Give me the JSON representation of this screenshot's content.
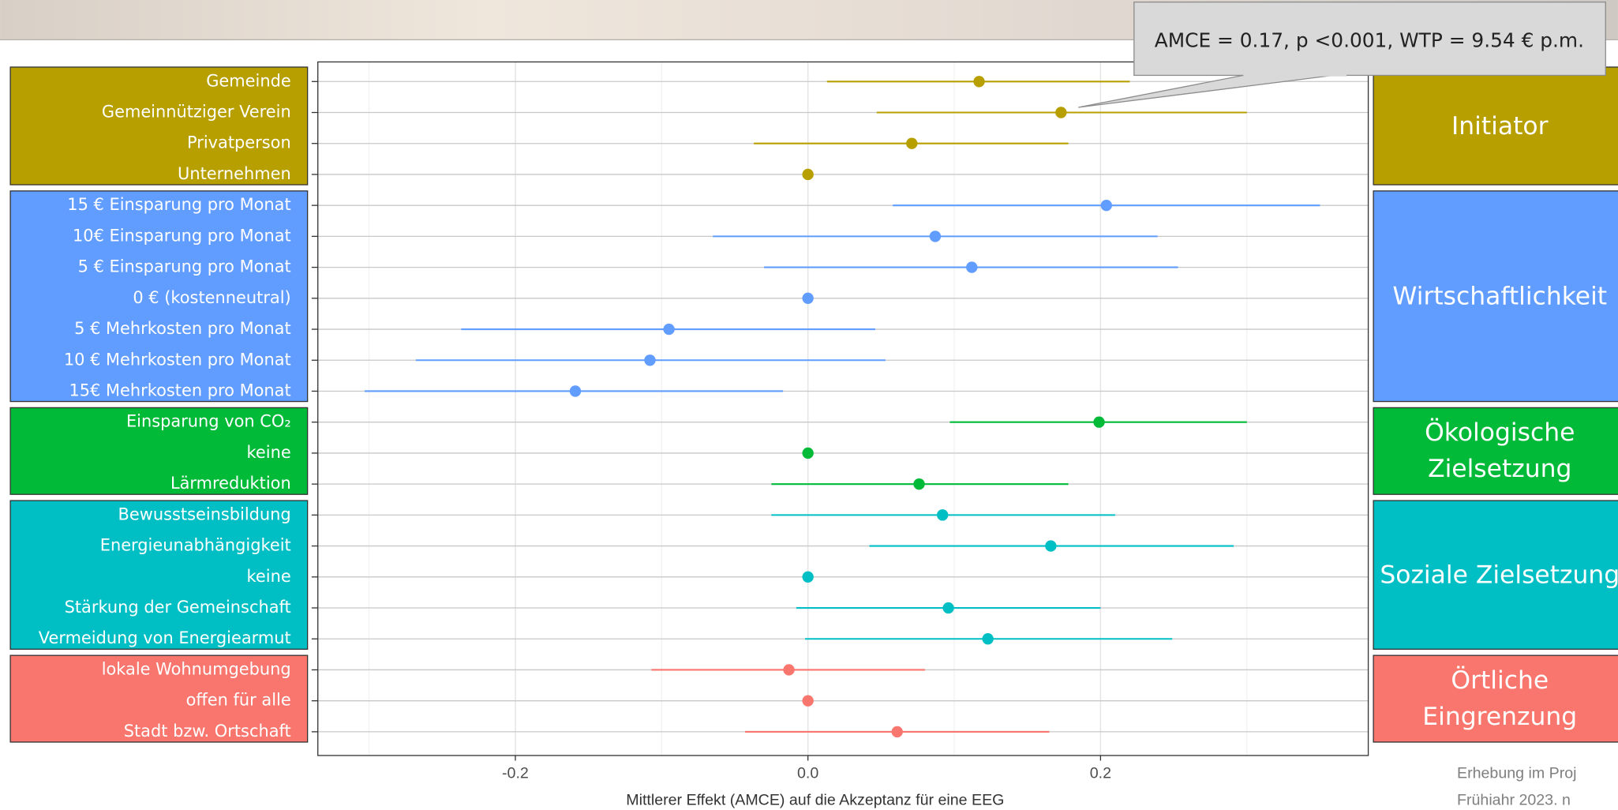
{
  "chart_data": {
    "type": "forest",
    "x_label": "Mittlerer Effekt (AMCE) auf die Akzeptanz für eine EEG",
    "annotation": "AMCE = 0.17, p <0.001, WTP = 9.54 € p.m.",
    "footnote": [
      "Erhebung im Proj",
      "Frühiahr 2023. n"
    ],
    "xlim": [
      -0.335,
      0.383
    ],
    "xticks": [
      -0.2,
      {
        "value": 0,
        "label": "0.0"
      },
      0.2
    ],
    "x_minor_gridlines": [
      -0.3,
      -0.1,
      0.1,
      0.3
    ],
    "grid": true,
    "groups": [
      {
        "name": "Initiator",
        "color": "#b79f00",
        "categories": [
          "Gemeinde",
          "Gemeinnütziger Verein",
          "Privatperson",
          "Unternehmen"
        ],
        "values": [
          0.117,
          0.173,
          0.071,
          0
        ],
        "lower": [
          0.013,
          0.047,
          -0.037,
          null
        ],
        "upper": [
          0.22,
          0.3,
          0.178,
          null
        ]
      },
      {
        "name": "Wirtschaftlichkeit",
        "color": "#619cff",
        "categories": [
          "15 € Einsparung pro Monat",
          "10€ Einsparung pro Monat",
          "5 € Einsparung pro Monat",
          "0 € (kostenneutral)",
          "5 € Mehrkosten pro Monat",
          "10 € Mehrkosten pro Monat",
          "15€ Mehrkosten pro Monat"
        ],
        "values": [
          0.204,
          0.087,
          0.112,
          0,
          -0.095,
          -0.108,
          -0.159
        ],
        "lower": [
          0.058,
          -0.065,
          -0.03,
          null,
          -0.237,
          -0.268,
          -0.303
        ],
        "upper": [
          0.35,
          0.239,
          0.253,
          null,
          0.046,
          0.053,
          -0.017
        ]
      },
      {
        "name": "Ökologische Zielsetzung",
        "color": "#00ba38",
        "categories": [
          "Einsparung von CO₂",
          "keine",
          "Lärmreduktion"
        ],
        "values": [
          0.199,
          0,
          0.076
        ],
        "lower": [
          0.097,
          null,
          -0.025
        ],
        "upper": [
          0.3,
          null,
          0.178
        ]
      },
      {
        "name": "Soziale Zielsetzung",
        "color": "#00bfc4",
        "categories": [
          "Bewusstseinsbildung",
          "Energieunabhängigkeit",
          "keine",
          "Stärkung der Gemeinschaft",
          "Vermeidung von Energiearmut"
        ],
        "values": [
          0.092,
          0.166,
          0,
          0.096,
          0.123
        ],
        "lower": [
          -0.025,
          0.042,
          null,
          -0.008,
          -0.002
        ],
        "upper": [
          0.21,
          0.291,
          null,
          0.2,
          0.249
        ]
      },
      {
        "name": "Örtliche Eingrenzung",
        "color": "#f8766d",
        "categories": [
          "lokale Wohnumgebung",
          "offen für alle",
          "Stadt bzw. Ortschaft"
        ],
        "values": [
          -0.013,
          0,
          0.061
        ],
        "lower": [
          -0.107,
          null,
          -0.043
        ],
        "upper": [
          0.08,
          null,
          0.165
        ]
      }
    ]
  }
}
